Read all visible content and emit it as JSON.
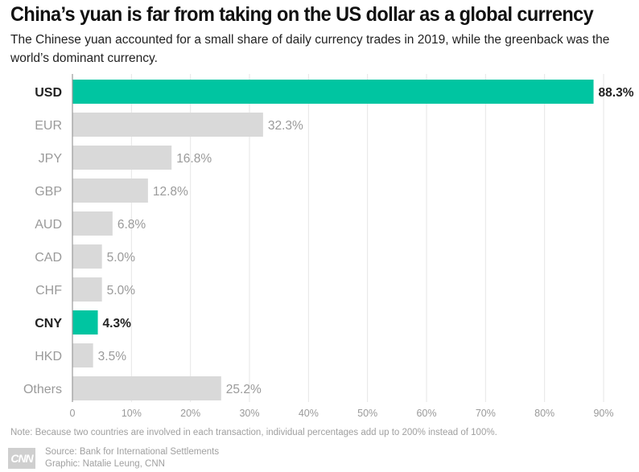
{
  "header": {
    "title": "China’s yuan is far from taking on the US dollar as a global currency",
    "subtitle": "The Chinese yuan accounted for a small share of daily currency trades in 2019, while the greenback was the world’s dominant currency."
  },
  "chart_data": {
    "type": "bar",
    "orientation": "horizontal",
    "categories": [
      "USD",
      "EUR",
      "JPY",
      "GBP",
      "AUD",
      "CAD",
      "CHF",
      "CNY",
      "HKD",
      "Others"
    ],
    "values": [
      88.3,
      32.3,
      16.8,
      12.8,
      6.8,
      5.0,
      5.0,
      4.3,
      3.5,
      25.2
    ],
    "value_labels": [
      "88.3%",
      "32.3%",
      "16.8%",
      "12.8%",
      "6.8%",
      "5.0%",
      "5.0%",
      "4.3%",
      "3.5%",
      "25.2%"
    ],
    "highlighted": [
      "USD",
      "CNY"
    ],
    "xlim": [
      0,
      90
    ],
    "xticks": [
      "0",
      "10%",
      "20%",
      "30%",
      "40%",
      "50%",
      "60%",
      "70%",
      "80%",
      "90%"
    ],
    "xlabel": "",
    "ylabel": "",
    "grid": "vertical",
    "colors": {
      "highlight": "#00c5a1",
      "default": "#d9d9d9",
      "label_highlight": "#222222",
      "label_default": "#9a9a9a",
      "grid": "#e6e6e6",
      "baseline": "#9a9a9a"
    }
  },
  "footer": {
    "note": "Note: Because two countries are involved in each transaction, individual percentages add up to 200% instead of 100%.",
    "logo": "CNN",
    "source": "Source: Bank for International Settlements",
    "graphic": "Graphic: Natalie Leung, CNN"
  }
}
